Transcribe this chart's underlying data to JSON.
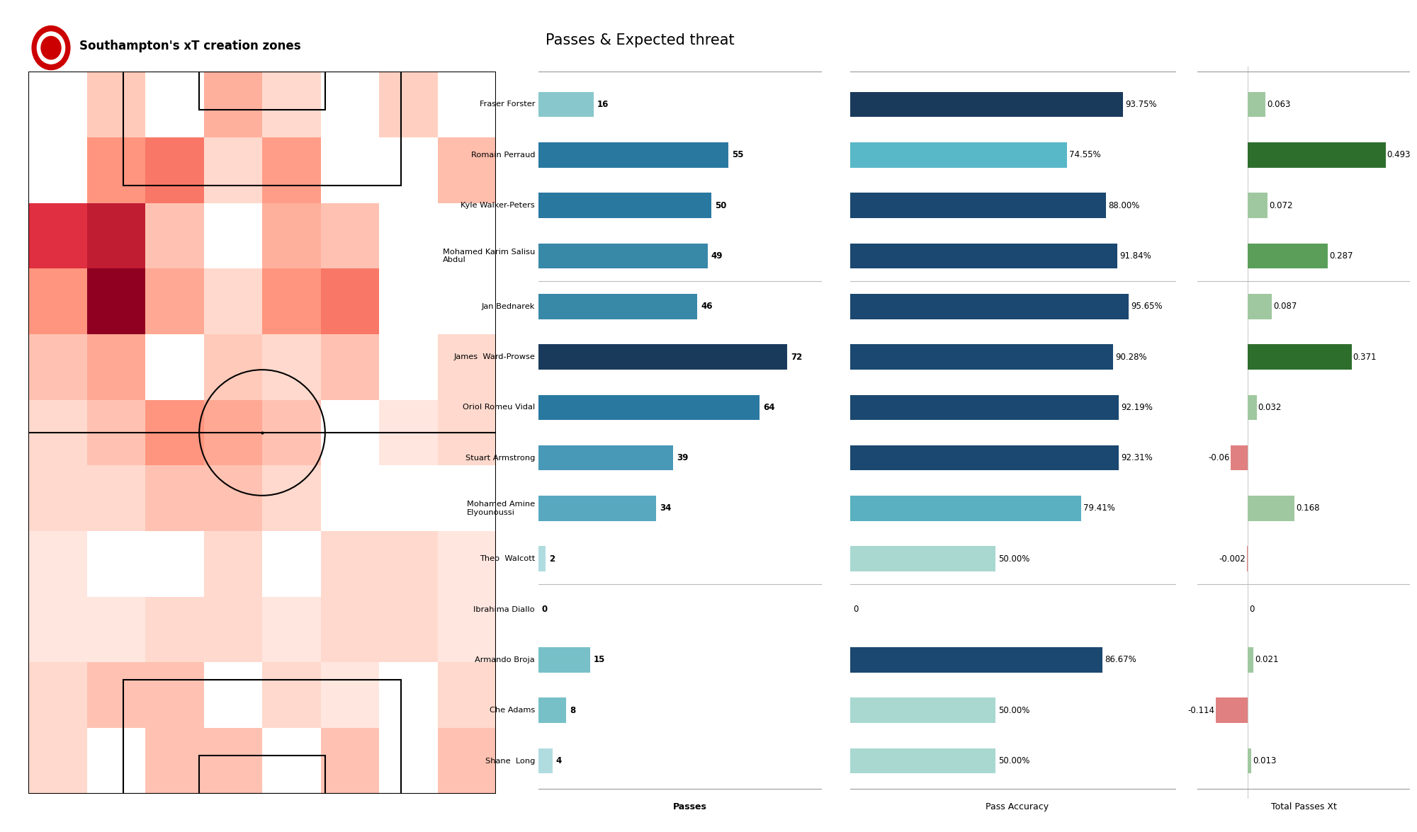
{
  "title_heatmap": "Southampton's xT creation zones",
  "title_bars": "Passes & Expected threat",
  "players": [
    "Fraser Forster",
    "Romain Perraud",
    "Kyle Walker-Peters",
    "Mohamed Karim Salisu\nAbdul",
    "Jan Bednarek",
    "James  Ward-Prowse",
    "Oriol Romeu Vidal",
    "Stuart Armstrong",
    "Mohamed Amine\nElyounoussi",
    "Theo  Walcott",
    "Ibrahima Diallo",
    "Armando Broja",
    "Che Adams",
    "Shane  Long"
  ],
  "passes": [
    16,
    55,
    50,
    49,
    46,
    72,
    64,
    39,
    34,
    2,
    0,
    15,
    8,
    4
  ],
  "pass_accuracy": [
    93.75,
    74.55,
    88.0,
    91.84,
    95.65,
    90.28,
    92.19,
    92.31,
    79.41,
    50.0,
    0,
    86.67,
    50.0,
    50.0
  ],
  "total_passes_xt": [
    0.063,
    0.493,
    0.072,
    0.287,
    0.087,
    0.371,
    0.032,
    -0.06,
    0.168,
    -0.002,
    0,
    0.021,
    -0.114,
    0.013
  ],
  "passes_colors": [
    "#88c8cc",
    "#2878a0",
    "#2878a0",
    "#3888a8",
    "#3888a8",
    "#1a3a5c",
    "#2878a0",
    "#4898b8",
    "#58a8c0",
    "#b0dce0",
    "#ffffff",
    "#78c0c8",
    "#78c0c8",
    "#b0dce0"
  ],
  "accuracy_colors": [
    "#1a3a5c",
    "#58b8c8",
    "#1a4870",
    "#1a4870",
    "#1a4870",
    "#1a4870",
    "#1a4870",
    "#1a4870",
    "#5ab0c0",
    "#a8d8d0",
    "#ffffff",
    "#1a4870",
    "#a8d8d0",
    "#a8d8d0"
  ],
  "xt_pos_color_light": "#a0c8a0",
  "xt_pos_color_mid": "#5a9e5a",
  "xt_pos_color_dark": "#2d6e2d",
  "xt_neg_color": "#e08080",
  "xt_colors": [
    "#a0c8a0",
    "#2d6e2d",
    "#a0c8a0",
    "#5a9e5a",
    "#a0c8a0",
    "#2d6e2d",
    "#a0c8a0",
    "#e08080",
    "#a0c8a0",
    "#e08080",
    "#a0c8a0",
    "#a0c8a0",
    "#e08080",
    "#a0c8a0"
  ],
  "separator_after_idx": [
    4,
    10
  ],
  "heatmap_data": [
    [
      0.0,
      0.25,
      0.0,
      0.35,
      0.18,
      0.0,
      0.22,
      0.0
    ],
    [
      0.0,
      0.45,
      0.55,
      0.18,
      0.42,
      0.0,
      0.0,
      0.3
    ],
    [
      0.75,
      0.85,
      0.28,
      0.0,
      0.35,
      0.28,
      0.0,
      0.0
    ],
    [
      0.45,
      1.0,
      0.38,
      0.18,
      0.45,
      0.55,
      0.0,
      0.0
    ],
    [
      0.28,
      0.38,
      0.0,
      0.25,
      0.18,
      0.28,
      0.0,
      0.18
    ],
    [
      0.18,
      0.28,
      0.45,
      0.38,
      0.28,
      0.0,
      0.12,
      0.18
    ],
    [
      0.18,
      0.18,
      0.28,
      0.28,
      0.18,
      0.0,
      0.0,
      0.0
    ],
    [
      0.12,
      0.0,
      0.0,
      0.18,
      0.0,
      0.18,
      0.18,
      0.12
    ],
    [
      0.12,
      0.12,
      0.18,
      0.18,
      0.12,
      0.18,
      0.18,
      0.12
    ],
    [
      0.18,
      0.28,
      0.28,
      0.0,
      0.18,
      0.12,
      0.0,
      0.18
    ],
    [
      0.18,
      0.0,
      0.28,
      0.28,
      0.0,
      0.28,
      0.0,
      0.28
    ]
  ],
  "bg_color": "#ffffff",
  "field_line_color": "#000000",
  "label_xlabel_passes": "Passes",
  "label_xlabel_accuracy": "Pass Accuracy",
  "label_xlabel_xt": "Total Passes Xt"
}
